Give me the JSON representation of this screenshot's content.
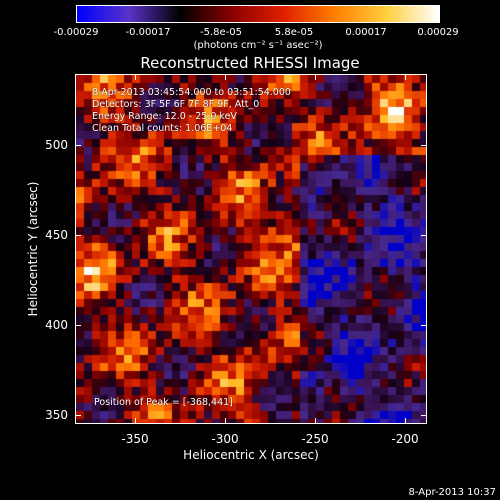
{
  "colorbar": {
    "tick_labels": [
      "-0.00029",
      "-0.00017",
      "-5.8e-05",
      "5.8e-05",
      "0.00017",
      "0.00029"
    ],
    "unit_label": "(photons cm⁻² s⁻¹ asec⁻²)",
    "colors": [
      "#0000ff",
      "#5a32c8",
      "#000000",
      "#8a0000",
      "#e02000",
      "#ff8000",
      "#ffd040",
      "#ffffff"
    ]
  },
  "chart_data": {
    "type": "heatmap",
    "title": "Reconstructed RHESSI Image",
    "xlabel": "Heliocentric X (arcsec)",
    "ylabel": "Heliocentric Y (arcsec)",
    "xlim": [
      -385,
      -190
    ],
    "ylim": [
      345,
      540
    ],
    "x_ticks": [
      -350,
      -300,
      -250,
      -200
    ],
    "y_ticks": [
      350,
      400,
      450,
      500
    ],
    "colorbar_range": [
      -0.00029,
      0.00029
    ],
    "peak_position": [
      -368,
      441
    ],
    "annotations": [
      "8-Apr-2013 03:45:54.000 to 03:51:54.000",
      "Detectors: 3F 5F 6F 7F 8F 9F, Att_0",
      "Energy Range: 12.0 - 25.0 keV",
      "Clean     Total counts: 1.06E+04",
      "Position of Peak = [-368,441]"
    ]
  },
  "timestamp": "8-Apr-2013 10:37"
}
